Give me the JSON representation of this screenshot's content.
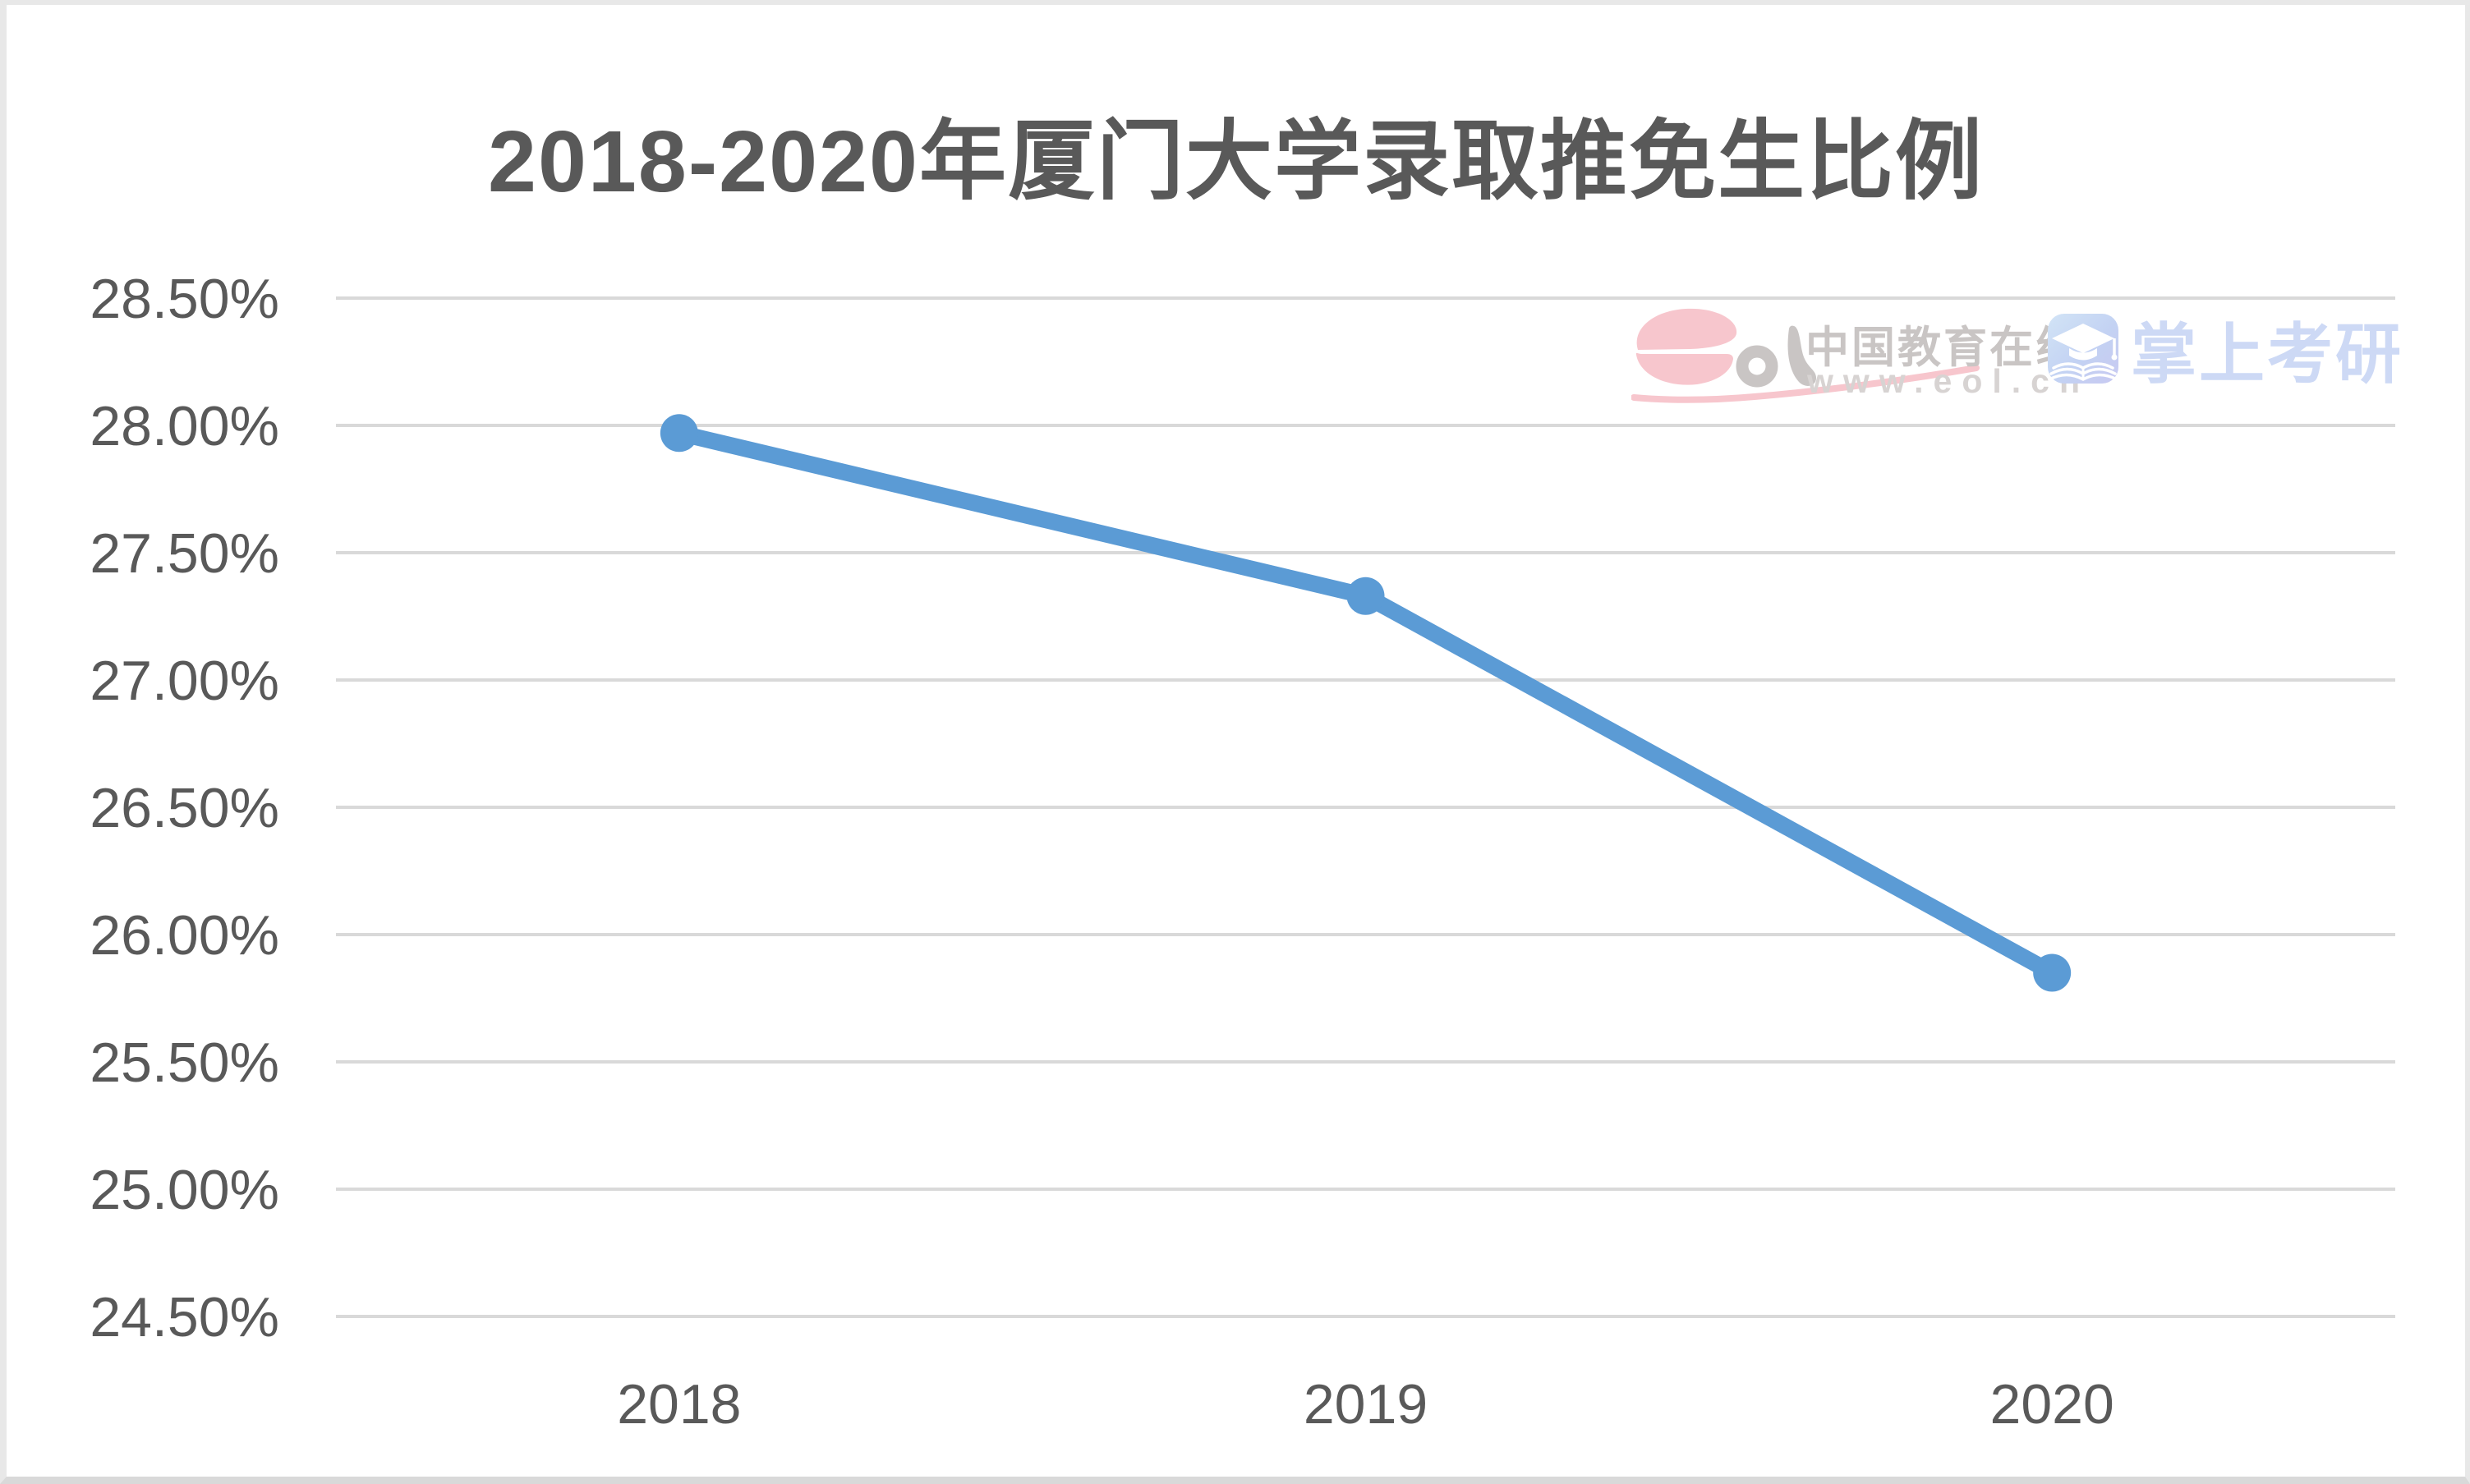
{
  "page": {
    "background": "#ffffff",
    "frame_border_color": "#e8e8e8"
  },
  "chart_data": {
    "type": "line",
    "title": "2018-2020年厦门大学录取推免生比例",
    "categories": [
      "2018",
      "2019",
      "2020"
    ],
    "values": [
      27.97,
      27.33,
      25.85
    ],
    "xlabel": "",
    "ylabel": "",
    "ylim": [
      24.5,
      28.5
    ],
    "ytick_step": 0.5,
    "ytick_labels": [
      "28.50%",
      "28.00%",
      "27.50%",
      "27.00%",
      "26.50%",
      "26.00%",
      "25.50%",
      "25.00%",
      "24.50%"
    ],
    "grid": true,
    "legend": false,
    "marker": "circle",
    "line_color": "#5b9bd5",
    "gridline_color": "#d9d9d9",
    "label_color": "#595959",
    "title_color": "#595959"
  },
  "watermark": {
    "brand": "eol",
    "site_name": "中国教育在线",
    "site_url": "www.eol.cn",
    "app_name": "掌上考研",
    "pink_color": "#f6c3ca",
    "gray_color": "#c9c5c4",
    "light_gray_color": "#d7d3d2",
    "periwinkle_color": "#cdd9f5"
  }
}
